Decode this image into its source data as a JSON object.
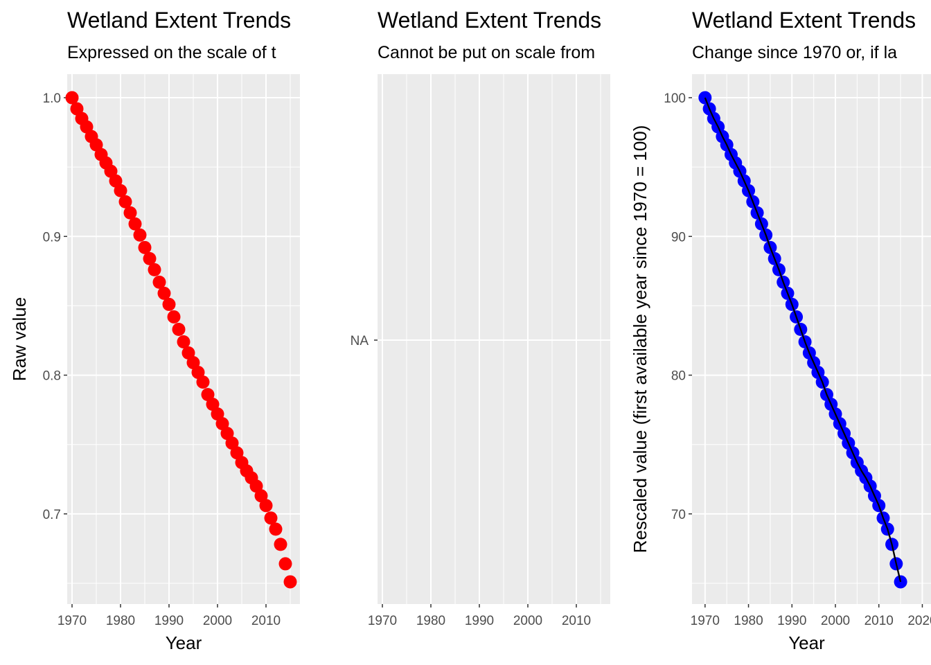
{
  "chart_data": [
    {
      "type": "scatter",
      "title": "Wetland Extent Trends",
      "subtitle": "Expressed on the scale of t",
      "xlabel": "Year",
      "ylabel": "Raw value",
      "xlim": [
        1969,
        2017
      ],
      "ylim": [
        0.635,
        1.017
      ],
      "x_ticks": [
        1970,
        1980,
        1990,
        2000,
        2010
      ],
      "x_tick_labels": [
        "1970",
        "1980",
        "1990",
        "2000",
        "2010"
      ],
      "y_ticks": [
        0.7,
        0.8,
        0.9,
        1.0
      ],
      "y_tick_labels": [
        "0.7",
        "0.8",
        "0.9",
        "1.0"
      ],
      "grid": true,
      "point_color": "#ff0000",
      "series": [
        {
          "x": [
            1970,
            1971,
            1972,
            1973,
            1974,
            1975,
            1976,
            1977,
            1978,
            1979,
            1980,
            1981,
            1982,
            1983,
            1984,
            1985,
            1986,
            1987,
            1988,
            1989,
            1990,
            1991,
            1992,
            1993,
            1994,
            1995,
            1996,
            1997,
            1998,
            1999,
            2000,
            2001,
            2002,
            2003,
            2004,
            2005,
            2006,
            2007,
            2008,
            2009,
            2010,
            2011,
            2012,
            2013,
            2014,
            2015
          ],
          "values": [
            1.0,
            0.992,
            0.985,
            0.979,
            0.972,
            0.966,
            0.959,
            0.953,
            0.947,
            0.94,
            0.933,
            0.925,
            0.917,
            0.909,
            0.901,
            0.892,
            0.884,
            0.876,
            0.867,
            0.859,
            0.851,
            0.842,
            0.833,
            0.824,
            0.816,
            0.809,
            0.802,
            0.795,
            0.786,
            0.779,
            0.772,
            0.765,
            0.758,
            0.751,
            0.744,
            0.737,
            0.731,
            0.726,
            0.72,
            0.713,
            0.706,
            0.697,
            0.689,
            0.678,
            0.664,
            0.651
          ]
        }
      ]
    },
    {
      "type": "scatter",
      "title": "Wetland Extent Trends",
      "subtitle": "Cannot be put on scale from",
      "xlabel": "",
      "ylabel": "",
      "xlim": [
        1969,
        2017
      ],
      "x_ticks": [
        1970,
        1980,
        1990,
        2000,
        2010
      ],
      "x_tick_labels": [
        "1970",
        "1980",
        "1990",
        "2000",
        "2010"
      ],
      "y_ticks": [
        "NA"
      ],
      "y_tick_labels": [
        "NA"
      ],
      "grid": true,
      "series": []
    },
    {
      "type": "line",
      "title": "Wetland Extent Trends",
      "subtitle": "Change since 1970 or, if la",
      "xlabel": "Year",
      "ylabel": "Rescaled value (first available year since 1970 = 100)",
      "xlim": [
        1967,
        2022
      ],
      "ylim": [
        63.5,
        101.7
      ],
      "x_ticks": [
        1970,
        1980,
        1990,
        2000,
        2010,
        2020
      ],
      "x_tick_labels": [
        "1970",
        "1980",
        "1990",
        "2000",
        "2010",
        "2020"
      ],
      "y_ticks": [
        70,
        80,
        90,
        100
      ],
      "y_tick_labels": [
        "70",
        "80",
        "90",
        "100"
      ],
      "grid": true,
      "point_color": "#0000ff",
      "line_color": "#000000",
      "series": [
        {
          "x": [
            1970,
            1971,
            1972,
            1973,
            1974,
            1975,
            1976,
            1977,
            1978,
            1979,
            1980,
            1981,
            1982,
            1983,
            1984,
            1985,
            1986,
            1987,
            1988,
            1989,
            1990,
            1991,
            1992,
            1993,
            1994,
            1995,
            1996,
            1997,
            1998,
            1999,
            2000,
            2001,
            2002,
            2003,
            2004,
            2005,
            2006,
            2007,
            2008,
            2009,
            2010,
            2011,
            2012,
            2013,
            2014,
            2015
          ],
          "values": [
            100.0,
            99.2,
            98.5,
            97.9,
            97.2,
            96.6,
            95.9,
            95.3,
            94.7,
            94.0,
            93.3,
            92.5,
            91.7,
            90.9,
            90.1,
            89.2,
            88.4,
            87.6,
            86.7,
            85.9,
            85.1,
            84.2,
            83.3,
            82.4,
            81.6,
            80.9,
            80.2,
            79.5,
            78.6,
            77.9,
            77.2,
            76.5,
            75.8,
            75.1,
            74.4,
            73.7,
            73.1,
            72.6,
            72.0,
            71.3,
            70.6,
            69.7,
            68.9,
            67.8,
            66.4,
            65.1
          ]
        }
      ]
    }
  ]
}
